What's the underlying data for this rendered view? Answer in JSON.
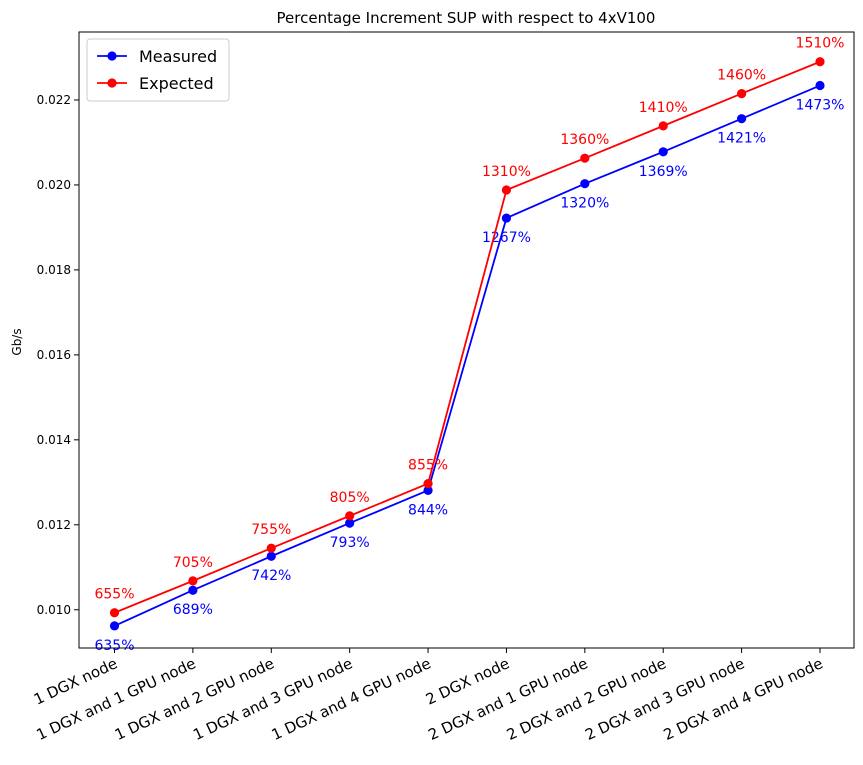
{
  "chart_data": {
    "type": "line",
    "title": "Percentage Increment SUP with respect to 4xV100",
    "xlabel": "",
    "ylabel": "Gb/s",
    "categories": [
      "1 DGX node",
      "1 DGX and 1 GPU node",
      "1 DGX and 2 GPU node",
      "1 DGX and 3 GPU node",
      "1 DGX and 4 GPU node",
      "2 DGX node",
      "2 DGX and 1 GPU node",
      "2 DGX and 2 GPU node",
      "2 DGX and 3 GPU node",
      "2 DGX and 4 GPU node"
    ],
    "ylim": [
      0.0091,
      0.0236
    ],
    "yticks": [
      0.01,
      0.012,
      0.014,
      0.016,
      0.018,
      0.02,
      0.022
    ],
    "ytick_labels": [
      "0.010",
      "0.012",
      "0.014",
      "0.016",
      "0.018",
      "0.020",
      "0.022"
    ],
    "grid": false,
    "legend": "top-left",
    "series": [
      {
        "name": "Measured",
        "color": "#0000ff",
        "values": [
          0.00962,
          0.01046,
          0.01126,
          0.01204,
          0.01281,
          0.01922,
          0.02003,
          0.02078,
          0.02156,
          0.02234
        ],
        "labels": [
          "635%",
          "689%",
          "742%",
          "793%",
          "844%",
          "1267%",
          "1320%",
          "1369%",
          "1421%",
          "1473%"
        ],
        "label_position": "below"
      },
      {
        "name": "Expected",
        "color": "#ff0000",
        "values": [
          0.00993,
          0.01068,
          0.01145,
          0.01221,
          0.01297,
          0.01988,
          0.02063,
          0.02139,
          0.02215,
          0.0229
        ],
        "labels": [
          "655%",
          "705%",
          "755%",
          "805%",
          "855%",
          "1310%",
          "1360%",
          "1410%",
          "1460%",
          "1510%"
        ],
        "label_position": "above"
      }
    ]
  }
}
